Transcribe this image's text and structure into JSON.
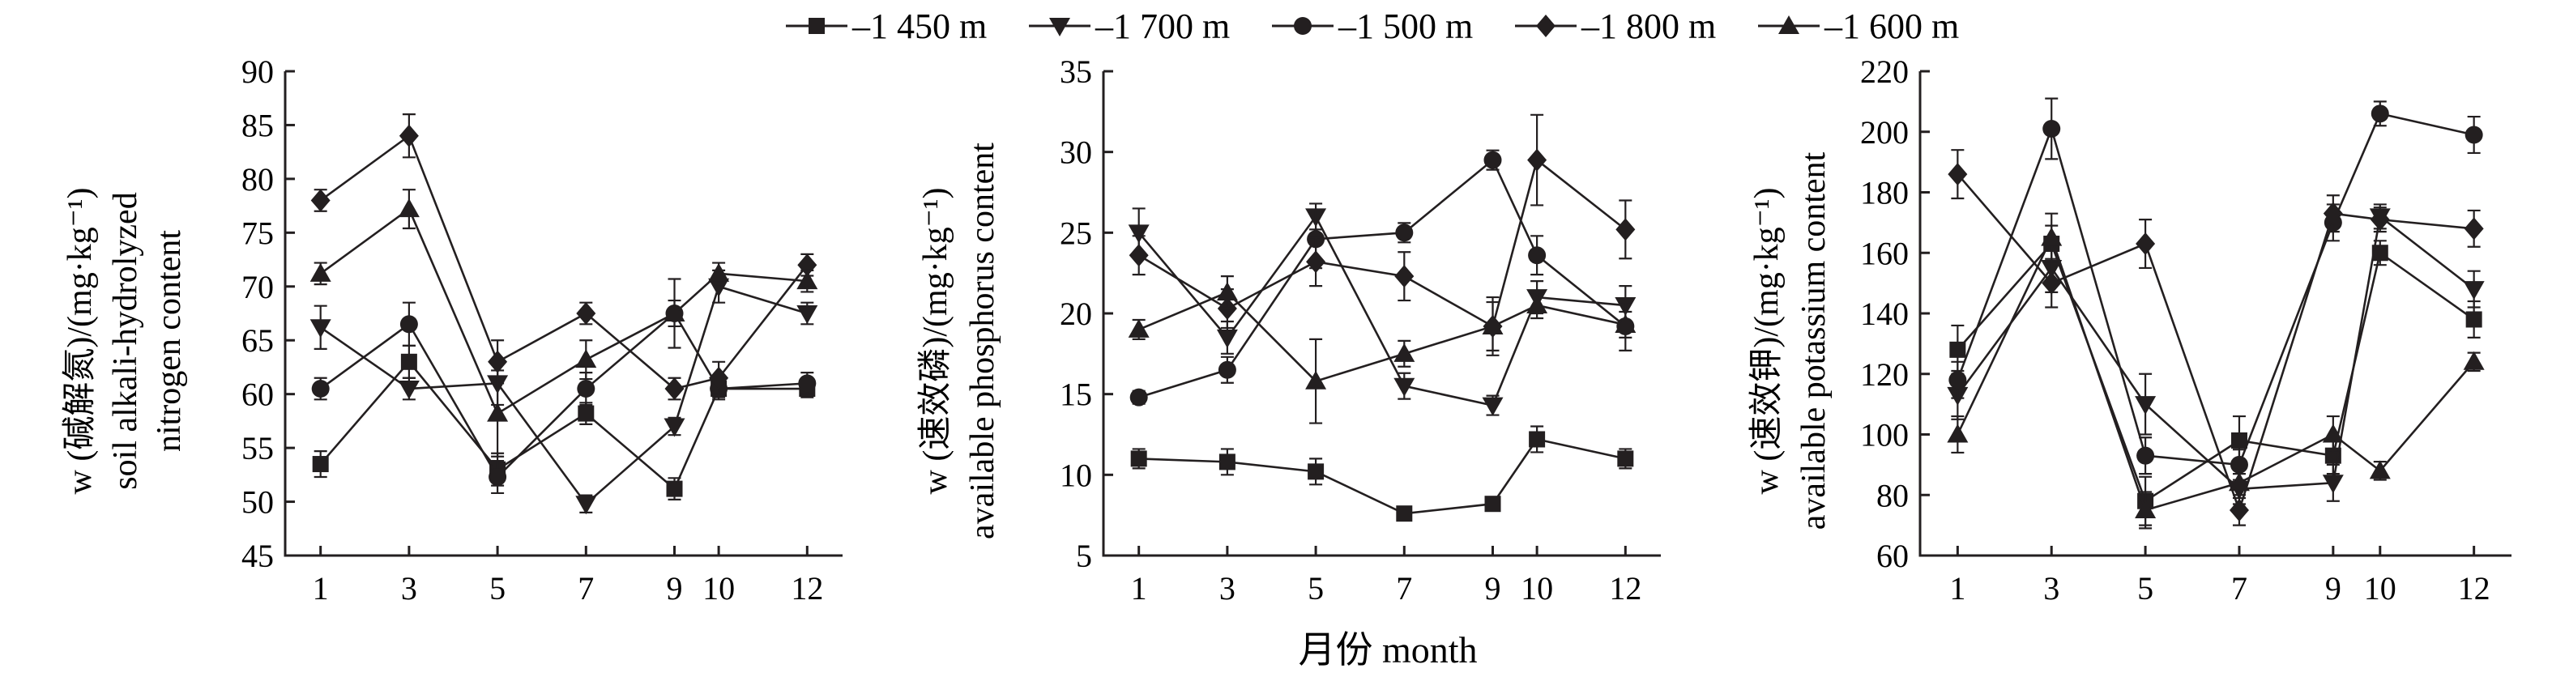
{
  "legend": {
    "entries": [
      {
        "label": "1 450 m",
        "marker": "square-icon"
      },
      {
        "label": "1 700 m",
        "marker": "triangle-down-icon"
      },
      {
        "label": "1 500 m",
        "marker": "circle-icon"
      },
      {
        "label": "1 800 m",
        "marker": "diamond-icon"
      },
      {
        "label": "1 600 m",
        "marker": "triangle-up-icon"
      }
    ]
  },
  "xaxis_label": "月份 month",
  "colors": {
    "ink": "#231f20",
    "background": "#ffffff"
  },
  "chart_data": [
    {
      "type": "line",
      "ylabel_line1": "w (碱解氮)/(mg·kg⁻¹)",
      "ylabel_line2": "soil alkali-hydrolyzed",
      "ylabel_line3": "nitrogen content",
      "ylim": [
        45,
        90
      ],
      "yticks": [
        45,
        50,
        55,
        60,
        65,
        70,
        75,
        80,
        85,
        90
      ],
      "xticks": [
        1,
        3,
        5,
        7,
        9,
        10,
        12
      ],
      "xlim": [
        0.2,
        12.8
      ],
      "series": [
        {
          "name": "1 450 m",
          "values": [
            53.5,
            63,
            53,
            58.2,
            51.2,
            60.5,
            60.5
          ],
          "errors": [
            1.2,
            1.5,
            1.5,
            1.0,
            1.0,
            0.8,
            0.8
          ]
        },
        {
          "name": "1 700 m",
          "values": [
            66.2,
            60.5,
            61,
            49.8,
            57,
            70,
            67.5
          ],
          "errors": [
            2.0,
            1.0,
            2.0,
            0.8,
            0.8,
            1.5,
            1.0
          ]
        },
        {
          "name": "1 500 m",
          "values": [
            60.5,
            66.5,
            52.3,
            60.5,
            67.5,
            60.5,
            61
          ],
          "errors": [
            1.0,
            2.0,
            1.5,
            1.5,
            1.2,
            1.0,
            1.0
          ]
        },
        {
          "name": "1 800 m",
          "values": [
            78,
            84,
            63,
            67.5,
            60.5,
            61.5,
            72
          ],
          "errors": [
            1.0,
            2.0,
            2.0,
            1.0,
            1.0,
            1.5,
            1.0
          ]
        },
        {
          "name": "1 600 m",
          "values": [
            71.2,
            77.2,
            58.2,
            63.2,
            67.5,
            71.2,
            70.5
          ],
          "errors": [
            1.0,
            1.8,
            4.0,
            1.8,
            3.2,
            1.0,
            1.0
          ]
        }
      ]
    },
    {
      "type": "line",
      "ylabel_line1": "w (速效磷)/(mg·kg⁻¹)",
      "ylabel_line2": "available phosphorus content",
      "ylim": [
        5,
        35
      ],
      "yticks": [
        5,
        10,
        15,
        20,
        25,
        30,
        35
      ],
      "xticks": [
        1,
        3,
        5,
        7,
        9,
        10,
        12
      ],
      "xlim": [
        0.2,
        12.8
      ],
      "series": [
        {
          "name": "1 450 m",
          "values": [
            11,
            10.8,
            10.2,
            7.6,
            8.2,
            12.2,
            11
          ],
          "errors": [
            0.6,
            0.8,
            0.8,
            0.3,
            0.3,
            0.8,
            0.6
          ]
        },
        {
          "name": "1 700 m",
          "values": [
            25,
            18.5,
            26,
            15.5,
            14.3,
            21,
            20.5
          ],
          "errors": [
            1.5,
            1.0,
            0.8,
            0.8,
            0.6,
            1.0,
            1.2
          ]
        },
        {
          "name": "1 500 m",
          "values": [
            14.8,
            16.5,
            24.6,
            25,
            29.5,
            23.6,
            19.2
          ],
          "errors": [
            0.4,
            0.8,
            1.8,
            0.6,
            0.6,
            1.2,
            1.5
          ]
        },
        {
          "name": "1 800 m",
          "values": [
            23.6,
            20.3,
            23.2,
            22.3,
            19.2,
            29.5,
            25.2
          ],
          "errors": [
            1.2,
            1.2,
            1.5,
            1.5,
            1.5,
            2.8,
            1.8
          ]
        },
        {
          "name": "1 600 m",
          "values": [
            19,
            21.3,
            15.8,
            17.5,
            19.2,
            20.5,
            19.3
          ],
          "errors": [
            0.6,
            1.0,
            2.6,
            0.8,
            1.8,
            0.8,
            0.8
          ]
        }
      ]
    },
    {
      "type": "line",
      "ylabel_line1": "w (速效钾)/(mg·kg⁻¹)",
      "ylabel_line2": "available potassium content",
      "ylim": [
        60,
        220
      ],
      "yticks": [
        60,
        80,
        100,
        120,
        140,
        160,
        180,
        200,
        220
      ],
      "xticks": [
        1,
        3,
        5,
        7,
        9,
        10,
        12
      ],
      "xlim": [
        0.2,
        12.8
      ],
      "series": [
        {
          "name": "1 450 m",
          "values": [
            128,
            163,
            78,
            98,
            93,
            160,
            138
          ],
          "errors": [
            8,
            6,
            8,
            8,
            6,
            4,
            6
          ]
        },
        {
          "name": "1 700 m",
          "values": [
            113,
            155,
            110,
            82,
            84,
            172,
            148
          ],
          "errors": [
            8,
            8,
            10,
            5,
            6,
            4,
            6
          ]
        },
        {
          "name": "1 500 m",
          "values": [
            118,
            201,
            93,
            90,
            170,
            206,
            199
          ],
          "errors": [
            6,
            10,
            6,
            5,
            6,
            4,
            6
          ]
        },
        {
          "name": "1 800 m",
          "values": [
            186,
            150,
            163,
            75,
            173,
            171,
            168
          ],
          "errors": [
            8,
            8,
            8,
            5,
            6,
            4,
            6
          ]
        },
        {
          "name": "1 600 m",
          "values": [
            100,
            165,
            75,
            84,
            100,
            88,
            124
          ],
          "errors": [
            6,
            8,
            6,
            5,
            6,
            3,
            3
          ]
        }
      ]
    }
  ]
}
